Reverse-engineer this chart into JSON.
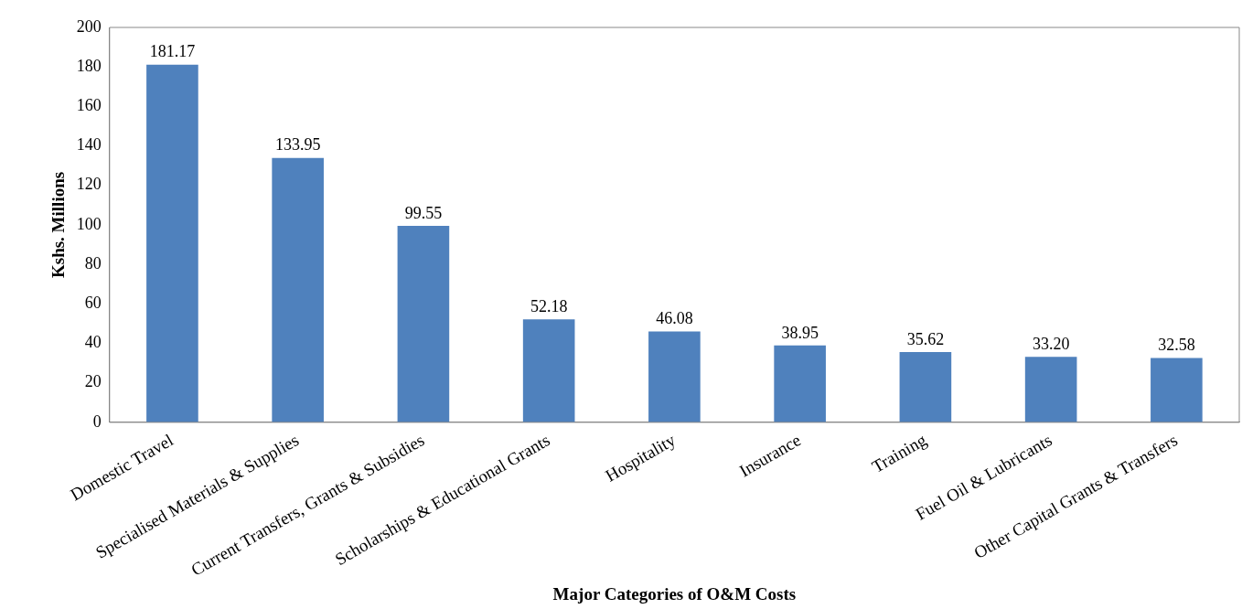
{
  "chart_data": {
    "type": "bar",
    "xlabel": "Major Categories of O&M Costs",
    "ylabel": "Kshs. Millions",
    "categories": [
      "Domestic Travel",
      "Specialised Materials & Supplies",
      "Current Transfers, Grants & Subsidies",
      "Scholarships & Educational Grants",
      "Hospitality",
      "Insurance",
      "Training",
      "Fuel Oil & Lubricants",
      "Other Capital Grants & Transfers"
    ],
    "values": [
      181.17,
      133.95,
      99.55,
      52.18,
      46.08,
      38.95,
      35.62,
      33.2,
      32.58
    ],
    "value_labels": [
      "181.17",
      "133.95",
      "99.55",
      "52.18",
      "46.08",
      "38.95",
      "35.62",
      "33.20",
      "32.58"
    ],
    "color": "#4f81bd",
    "ylim": [
      0,
      200
    ],
    "yticks": [
      0,
      20,
      40,
      60,
      80,
      100,
      120,
      140,
      160,
      180,
      200
    ],
    "grid": false,
    "legend": false
  }
}
